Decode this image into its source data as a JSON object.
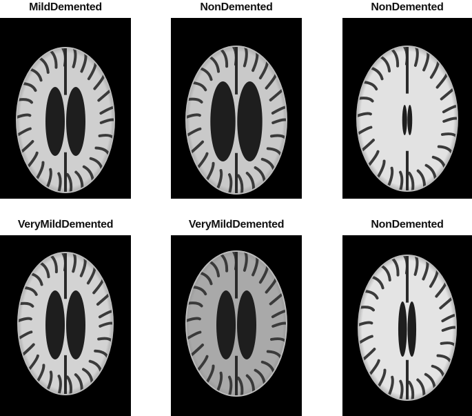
{
  "figure": {
    "panels": [
      {
        "label": "MildDemented"
      },
      {
        "label": "NonDemented"
      },
      {
        "label": "NonDemented"
      },
      {
        "label": "VeryMildDemented"
      },
      {
        "label": "VeryMildDemented"
      },
      {
        "label": "NonDemented"
      }
    ]
  }
}
